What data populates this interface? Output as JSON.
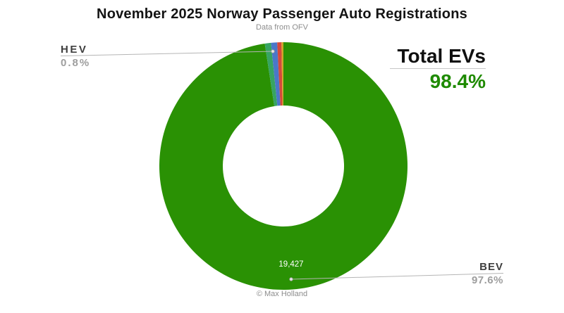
{
  "title": "November 2025 Norway Passenger Auto Registrations",
  "subtitle": "Data from OFV",
  "footer": "© Max Holland",
  "total_evs": {
    "label": "Total EVs",
    "value": "98.4%"
  },
  "callouts": {
    "hev": {
      "label": "HEV",
      "pct": "0.8%"
    },
    "bev": {
      "label": "BEV",
      "pct": "97.6%"
    }
  },
  "center_value": "19,427",
  "colors": {
    "accent_green": "#1e8a00",
    "label_dark": "#3e3e3e",
    "label_gray": "#9e9e9e",
    "leader_line": "#b5b5b5"
  },
  "chart_data": {
    "type": "pie",
    "variant": "donut",
    "title": "November 2025 Norway Passenger Auto Registrations",
    "subtitle": "Data from OFV",
    "direction": "clockwise",
    "start_angle_deg": 0,
    "legend": "none",
    "segments": [
      {
        "label": "BEV",
        "pct": 97.6,
        "color": "#2a9104",
        "data_label": "19,427"
      },
      {
        "label": "",
        "pct": 0.8,
        "color": "#37a463"
      },
      {
        "label": "HEV",
        "pct": 0.8,
        "color": "#4b77c9"
      },
      {
        "label": "",
        "pct": 0.55,
        "color": "#d5493b"
      },
      {
        "label": "",
        "pct": 0.25,
        "color": "#d2a42a"
      }
    ],
    "annotation": {
      "label": "Total EVs",
      "value": "98.4%"
    }
  }
}
